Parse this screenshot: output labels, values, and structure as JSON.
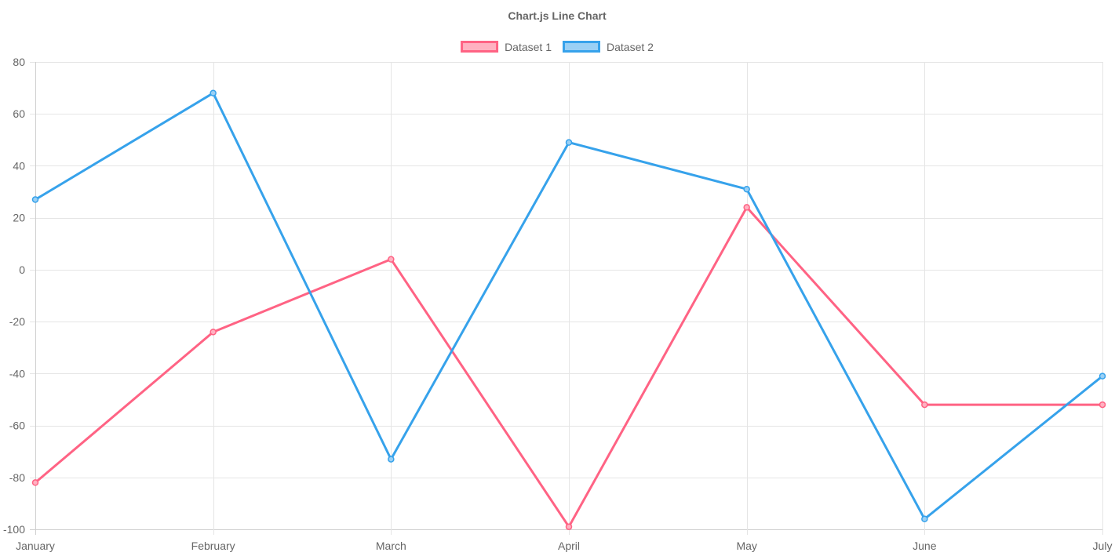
{
  "chart_data": {
    "type": "line",
    "title": "Chart.js Line Chart",
    "categories": [
      "January",
      "February",
      "March",
      "April",
      "May",
      "June",
      "July"
    ],
    "ylim": [
      -100,
      80
    ],
    "y_ticks": [
      "80",
      "60",
      "40",
      "20",
      "0",
      "-20",
      "-40",
      "-60",
      "-80",
      "-100"
    ],
    "y_tick_values": [
      80,
      60,
      40,
      20,
      0,
      -20,
      -40,
      -60,
      -80,
      -100
    ],
    "grid": true,
    "legend_position": "top",
    "series": [
      {
        "name": "Dataset 1",
        "color": "#ff6384",
        "fill_color": "#ffb1c1",
        "values": [
          -82,
          -24,
          4,
          -99,
          24,
          -52,
          -52
        ]
      },
      {
        "name": "Dataset 2",
        "color": "#36a2eb",
        "fill_color": "#9ad0f5",
        "values": [
          27,
          68,
          -73,
          49,
          31,
          -96,
          -41
        ]
      }
    ]
  }
}
